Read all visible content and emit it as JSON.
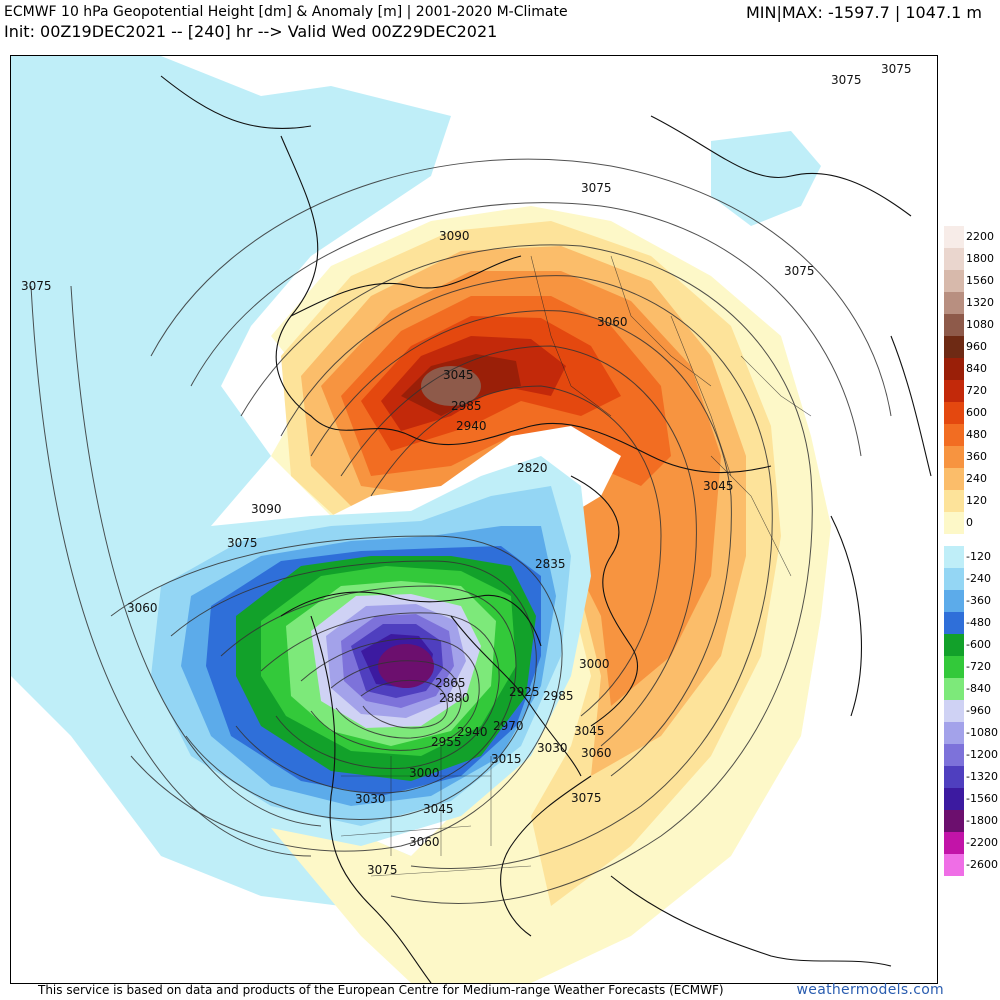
{
  "header": {
    "title": "ECMWF 10 hPa Geopotential Height [dm] & Anomaly [m] | 2001-2020 M-Climate",
    "init_line": "Init: 00Z19DEC2021 -- [240] hr --> Valid Wed 00Z29DEC2021",
    "minmax": "MIN|MAX: -1597.7 | 1047.1 m"
  },
  "legend": {
    "positive": [
      {
        "label": "2200",
        "color": "#f7ece8"
      },
      {
        "label": "1800",
        "color": "#ead6ce"
      },
      {
        "label": "1560",
        "color": "#d7b9ab"
      },
      {
        "label": "1320",
        "color": "#b88f80"
      },
      {
        "label": "1080",
        "color": "#8e5a4a"
      },
      {
        "label": "960",
        "color": "#6e2a14"
      },
      {
        "label": "840",
        "color": "#9a1f08"
      },
      {
        "label": "720",
        "color": "#c3290a"
      },
      {
        "label": "600",
        "color": "#e4480f"
      },
      {
        "label": "480",
        "color": "#f26d22"
      },
      {
        "label": "360",
        "color": "#f79440"
      },
      {
        "label": "240",
        "color": "#fbbd6a"
      },
      {
        "label": "120",
        "color": "#fde39a"
      },
      {
        "label": "0",
        "color": "#fdf8c8"
      }
    ],
    "negative": [
      {
        "label": "-120",
        "color": "#bfeef8"
      },
      {
        "label": "-240",
        "color": "#94d6f4"
      },
      {
        "label": "-360",
        "color": "#5cabea"
      },
      {
        "label": "-480",
        "color": "#2f6fd9"
      },
      {
        "label": "-600",
        "color": "#12a12a"
      },
      {
        "label": "-720",
        "color": "#33c93a"
      },
      {
        "label": "-840",
        "color": "#7de97a"
      },
      {
        "label": "-960",
        "color": "#cfd2f4"
      },
      {
        "label": "-1080",
        "color": "#a3a2ea"
      },
      {
        "label": "-1200",
        "color": "#7d72da"
      },
      {
        "label": "-1320",
        "color": "#4f3fbf"
      },
      {
        "label": "-1560",
        "color": "#3c1aa0"
      },
      {
        "label": "-1800",
        "color": "#6c0f6e"
      },
      {
        "label": "-2200",
        "color": "#c214a8"
      },
      {
        "label": "-2600",
        "color": "#ef6ee6"
      }
    ]
  },
  "map": {
    "contour_labels": [
      "3075",
      "3075",
      "3075",
      "3075",
      "3075",
      "3090",
      "3060",
      "3045",
      "2985",
      "2940",
      "2820",
      "3045",
      "3090",
      "3075",
      "3060",
      "2835",
      "3000",
      "2985",
      "2925",
      "2970",
      "2880",
      "2865",
      "2940",
      "2955",
      "3045",
      "3030",
      "3060",
      "3015",
      "3000",
      "3030",
      "3045",
      "3060",
      "3075",
      "3075"
    ]
  },
  "footer": {
    "credit": "This service is based on data and products of the European Centre for Medium-range Weather Forecasts (ECMWF)",
    "brand": "weathermodels.com"
  }
}
